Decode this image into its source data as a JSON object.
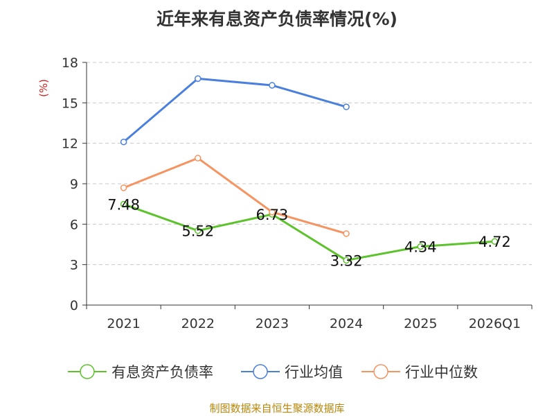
{
  "chart_data": {
    "type": "line",
    "title": "近年来有息资产负债率情况(%)",
    "ylabel": "(%)",
    "xlabel": "",
    "categories": [
      "2021",
      "2022",
      "2023",
      "2024",
      "2025",
      "2026Q1"
    ],
    "ylim": [
      0,
      18
    ],
    "yticks": [
      0,
      3,
      6,
      9,
      12,
      15,
      18
    ],
    "grid": true,
    "legend_position": "bottom",
    "series": [
      {
        "name": "有息资产负债率",
        "color": "#5ec22d",
        "values": [
          7.48,
          5.52,
          6.73,
          3.32,
          4.34,
          4.72
        ],
        "labels": [
          "7.48",
          "5.52",
          "6.73",
          "3.32",
          "4.34",
          "4.72"
        ]
      },
      {
        "name": "行业均值",
        "color": "#4a7fde",
        "values": [
          12.1,
          16.8,
          16.3,
          14.7,
          null,
          null
        ]
      },
      {
        "name": "行业中位数",
        "color": "#f59460",
        "values": [
          8.7,
          10.9,
          6.9,
          5.3,
          null,
          null
        ]
      }
    ]
  },
  "source": "制图数据来自恒生聚源数据库"
}
